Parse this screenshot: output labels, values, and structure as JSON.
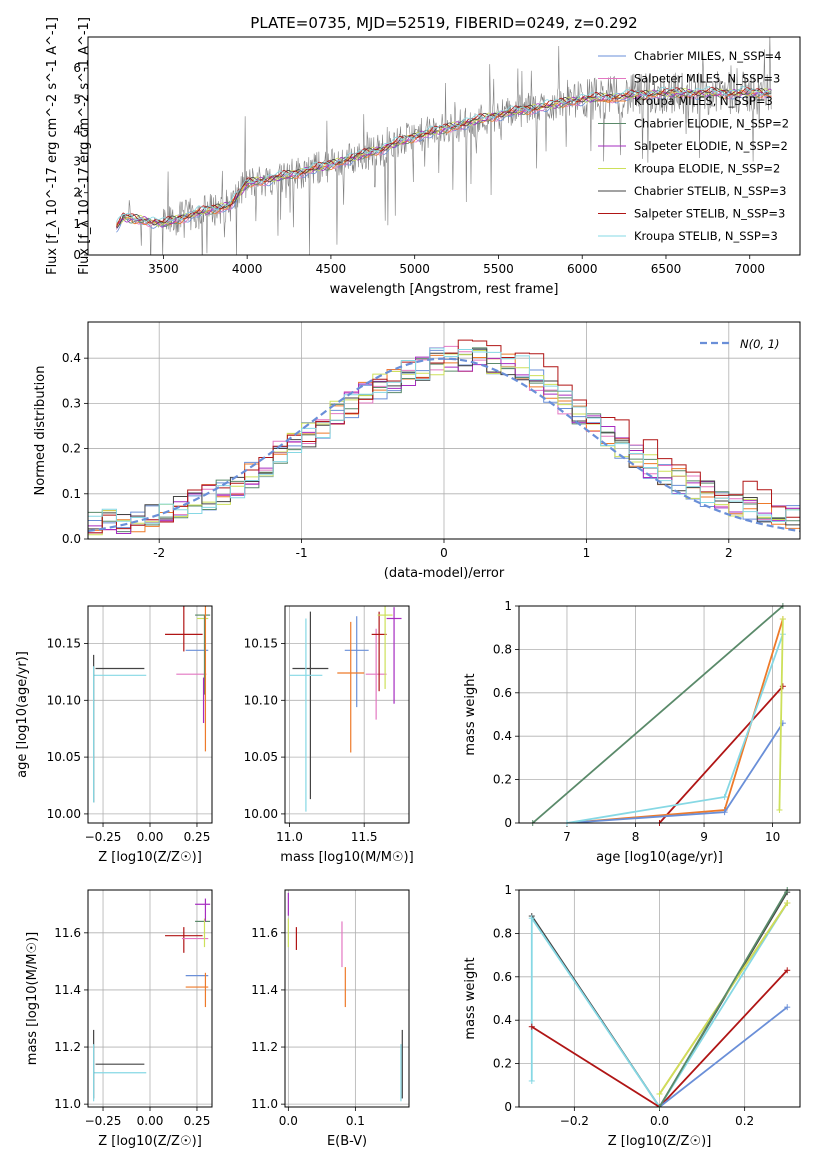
{
  "chart_data": [
    {
      "type": "line",
      "title": "PLATE=0735, MJD=52519, FIBERID=0249, z=0.292",
      "xlabel": "wavelength [Angstrom, rest frame]",
      "ylabel": "Flux [f_λ 10^-17 erg cm^-2 s^-1 A^-1]",
      "xlim": [
        3050,
        7300
      ],
      "ylim": [
        0,
        7
      ],
      "xticks": [
        3500,
        4000,
        4500,
        5000,
        5500,
        6000,
        6500,
        7000
      ],
      "yticks": [
        0,
        1,
        2,
        3,
        4,
        5,
        6
      ],
      "grid": false,
      "legend_position": "upper right",
      "data_range_x": [
        3220,
        7130
      ],
      "spectrum_anchors": {
        "x": [
          3220,
          3260,
          3400,
          3500,
          3700,
          3900,
          4000,
          4200,
          4500,
          4800,
          5000,
          5500,
          6000,
          6500,
          7000,
          7130
        ],
        "y": [
          0.9,
          1.2,
          1.1,
          1.0,
          1.35,
          1.6,
          2.3,
          2.5,
          2.9,
          3.4,
          3.8,
          4.5,
          5.0,
          5.2,
          5.2,
          5.2
        ]
      },
      "series": [
        {
          "name": "Chabrier MILES, N_SSP=4",
          "color": "#6a8fd8"
        },
        {
          "name": "Salpeter MILES, N_SSP=3",
          "color": "#e377c2"
        },
        {
          "name": "Kroupa MILES, N_SSP=3",
          "color": "#ee7a2a"
        },
        {
          "name": "Chabrier ELODIE, N_SSP=2",
          "color": "#5a8a6a"
        },
        {
          "name": "Salpeter ELODIE, N_SSP=2",
          "color": "#a62cc0"
        },
        {
          "name": "Kroupa ELODIE, N_SSP=2",
          "color": "#cde05a"
        },
        {
          "name": "Chabrier STELIB, N_SSP=3",
          "color": "#444444"
        },
        {
          "name": "Salpeter STELIB, N_SSP=3",
          "color": "#b01515"
        },
        {
          "name": "Kroupa STELIB, N_SSP=3",
          "color": "#86d8e4"
        }
      ],
      "data_color": "#808080"
    },
    {
      "type": "line",
      "xlabel": "(data-model)/error",
      "ylabel": "Normed distribution",
      "xlim": [
        -2.5,
        2.5
      ],
      "ylim": [
        0,
        0.48
      ],
      "xticks": [
        -2,
        -1,
        0,
        1,
        2
      ],
      "yticks": [
        0.0,
        0.1,
        0.2,
        0.3,
        0.4
      ],
      "grid": true,
      "legend": "N(0, 1)",
      "legend_position": "upper right",
      "bin_width": 0.1,
      "histogram_anchors": {
        "x": [
          -2.5,
          -2.0,
          -1.5,
          -1.0,
          -0.5,
          0.0,
          0.5,
          1.0,
          1.5,
          2.0,
          2.5
        ],
        "y": [
          0.03,
          0.05,
          0.11,
          0.22,
          0.33,
          0.4,
          0.39,
          0.26,
          0.15,
          0.08,
          0.04
        ]
      }
    },
    {
      "type": "scatter",
      "xlabel": "Z [log10(Z/Z☉)]",
      "ylabel": "age  [log10(age/yr)]",
      "xlim": [
        -0.33,
        0.33
      ],
      "ylim": [
        9.992,
        10.183
      ],
      "xticks": [
        -0.25,
        0.0,
        0.25
      ],
      "xticklabels": [
        "−0.25",
        "0.00",
        "0.25"
      ],
      "yticks": [
        10.0,
        10.05,
        10.1,
        10.15
      ],
      "yticklabels": [
        "10.00",
        "10.05",
        "10.10",
        "10.15"
      ],
      "grid": true,
      "errorbars": [
        {
          "x": -0.16,
          "y": 10.128,
          "xerr": [
            0.13,
            0.13
          ],
          "yerr": [
            0,
            0
          ],
          "series": 6
        },
        {
          "x": -0.16,
          "y": 10.122,
          "xerr": [
            0.14,
            0.14
          ],
          "yerr": [
            0,
            0
          ],
          "series": 8
        },
        {
          "x": -0.3,
          "y": 10.075,
          "xerr": [
            0,
            0
          ],
          "yerr": [
            0.065,
            0.065
          ],
          "series": 6
        },
        {
          "x": -0.3,
          "y": 10.07,
          "xerr": [
            0,
            0
          ],
          "yerr": [
            0.06,
            0.06
          ],
          "series": 8
        },
        {
          "x": 0.18,
          "y": 10.158,
          "xerr": [
            0.1,
            0.1
          ],
          "yerr": [
            0.015,
            0.058
          ],
          "series": 7
        },
        {
          "x": 0.22,
          "y": 10.123,
          "xerr": [
            0.08,
            0.08
          ],
          "yerr": [
            0,
            0
          ],
          "series": 1
        },
        {
          "x": 0.25,
          "y": 10.144,
          "xerr": [
            0.06,
            0.06
          ],
          "yerr": [
            0,
            0
          ],
          "series": 0
        },
        {
          "x": 0.28,
          "y": 10.175,
          "xerr": [
            0.04,
            0.04
          ],
          "yerr": [
            0,
            0
          ],
          "series": 3
        },
        {
          "x": 0.28,
          "y": 10.172,
          "xerr": [
            0.03,
            0.03
          ],
          "yerr": [
            0,
            0
          ],
          "series": 5
        },
        {
          "x": 0.29,
          "y": 10.14,
          "xerr": [
            0,
            0
          ],
          "yerr": [
            0.035,
            0.035
          ],
          "series": 3
        },
        {
          "x": 0.295,
          "y": 10.12,
          "xerr": [
            0,
            0
          ],
          "yerr": [
            0.065,
            0.065
          ],
          "series": 2
        },
        {
          "x": 0.285,
          "y": 10.1,
          "xerr": [
            0,
            0
          ],
          "yerr": [
            0.02,
            0.02
          ],
          "series": 4
        }
      ]
    },
    {
      "type": "scatter",
      "xlabel": "mass [log10(M/M☉)]",
      "xlim": [
        10.97,
        11.8
      ],
      "ylim": [
        9.992,
        10.183
      ],
      "xticks": [
        11.0,
        11.5
      ],
      "xticklabels": [
        "11.0",
        "11.5"
      ],
      "yticks": [
        10.0,
        10.05,
        10.1,
        10.15
      ],
      "yticklabels": [
        "10.00",
        "10.05",
        "10.10",
        "10.15"
      ],
      "grid": true,
      "errorbars": [
        {
          "x": 11.14,
          "y": 10.128,
          "xerr": [
            0.12,
            0.12
          ],
          "yerr": [
            0.115,
            0.05
          ],
          "series": 6
        },
        {
          "x": 11.11,
          "y": 10.122,
          "xerr": [
            0.11,
            0.11
          ],
          "yerr": [
            0.12,
            0.05
          ],
          "series": 8
        },
        {
          "x": 11.45,
          "y": 10.144,
          "xerr": [
            0.08,
            0.08
          ],
          "yerr": [
            0.05,
            0.03
          ],
          "series": 0
        },
        {
          "x": 11.41,
          "y": 10.124,
          "xerr": [
            0.09,
            0.09
          ],
          "yerr": [
            0.07,
            0.045
          ],
          "series": 2
        },
        {
          "x": 11.58,
          "y": 10.123,
          "xerr": [
            0.07,
            0.07
          ],
          "yerr": [
            0.04,
            0.04
          ],
          "series": 1
        },
        {
          "x": 11.6,
          "y": 10.158,
          "xerr": [
            0.05,
            0.05
          ],
          "yerr": [
            0.05,
            0.02
          ],
          "series": 7
        },
        {
          "x": 11.7,
          "y": 10.172,
          "xerr": [
            0.05,
            0.05
          ],
          "yerr": [
            0.075,
            0.01
          ],
          "series": 4
        },
        {
          "x": 11.64,
          "y": 10.175,
          "xerr": [
            0.05,
            0.05
          ],
          "yerr": [
            0.065,
            0.01
          ],
          "series": 5
        }
      ]
    },
    {
      "type": "line",
      "xlabel": "age  [log10(age/yr)]",
      "ylabel": "mass weight",
      "xlim": [
        6.3,
        10.4
      ],
      "ylim": [
        0,
        1.0
      ],
      "xticks": [
        7,
        8,
        9,
        10
      ],
      "yticks": [
        0.0,
        0.2,
        0.4,
        0.6,
        0.8,
        1.0
      ],
      "grid": true,
      "series": [
        {
          "series_index": 3,
          "x": [
            6.5,
            10.15
          ],
          "y": [
            0.0,
            1.0
          ]
        },
        {
          "series_index": 7,
          "x": [
            8.35,
            10.15
          ],
          "y": [
            0.0,
            0.63
          ]
        },
        {
          "series_index": 2,
          "x": [
            7.0,
            9.3,
            10.15
          ],
          "y": [
            0.0,
            0.06,
            0.94
          ]
        },
        {
          "series_index": 0,
          "x": [
            7.0,
            9.3,
            10.15
          ],
          "y": [
            0.0,
            0.05,
            0.46
          ]
        },
        {
          "series_index": 8,
          "x": [
            7.0,
            9.3,
            10.15
          ],
          "y": [
            0.0,
            0.12,
            0.87
          ]
        },
        {
          "series_index": 5,
          "x": [
            10.1,
            10.15
          ],
          "y": [
            0.06,
            0.94
          ]
        }
      ]
    },
    {
      "type": "scatter",
      "xlabel": "Z [log10(Z/Z☉)]",
      "ylabel": "mass [log10(M/M☉)]",
      "xlim": [
        -0.33,
        0.33
      ],
      "ylim": [
        10.99,
        11.75
      ],
      "xticks": [
        -0.25,
        0.0,
        0.25
      ],
      "xticklabels": [
        "−0.25",
        "0.00",
        "0.25"
      ],
      "yticks": [
        11.0,
        11.2,
        11.4,
        11.6
      ],
      "yticklabels": [
        "11.0",
        "11.2",
        "11.4",
        "11.6"
      ],
      "grid": true,
      "errorbars": [
        {
          "x": -0.16,
          "y": 11.14,
          "xerr": [
            0.13,
            0.13
          ],
          "yerr": [
            0,
            0
          ],
          "series": 6
        },
        {
          "x": -0.16,
          "y": 11.11,
          "xerr": [
            0.14,
            0.14
          ],
          "yerr": [
            0,
            0
          ],
          "series": 8
        },
        {
          "x": -0.3,
          "y": 11.14,
          "xerr": [
            0,
            0
          ],
          "yerr": [
            0.12,
            0.12
          ],
          "series": 6
        },
        {
          "x": -0.3,
          "y": 11.11,
          "xerr": [
            0,
            0
          ],
          "yerr": [
            0.1,
            0.1
          ],
          "series": 8
        },
        {
          "x": 0.18,
          "y": 11.59,
          "xerr": [
            0.1,
            0.1
          ],
          "yerr": [
            0.06,
            0.03
          ],
          "series": 7
        },
        {
          "x": 0.24,
          "y": 11.58,
          "xerr": [
            0.07,
            0.07
          ],
          "yerr": [
            0,
            0
          ],
          "series": 1
        },
        {
          "x": 0.25,
          "y": 11.45,
          "xerr": [
            0.06,
            0.06
          ],
          "yerr": [
            0,
            0
          ],
          "series": 0
        },
        {
          "x": 0.25,
          "y": 11.41,
          "xerr": [
            0.06,
            0.06
          ],
          "yerr": [
            0,
            0
          ],
          "series": 2
        },
        {
          "x": 0.28,
          "y": 11.7,
          "xerr": [
            0.04,
            0.04
          ],
          "yerr": [
            0,
            0
          ],
          "series": 4
        },
        {
          "x": 0.28,
          "y": 11.64,
          "xerr": [
            0.04,
            0.04
          ],
          "yerr": [
            0,
            0
          ],
          "series": 3
        },
        {
          "x": 0.295,
          "y": 11.41,
          "xerr": [
            0,
            0
          ],
          "yerr": [
            0.07,
            0.05
          ],
          "series": 2
        },
        {
          "x": 0.29,
          "y": 11.6,
          "xerr": [
            0,
            0
          ],
          "yerr": [
            0.05,
            0.05
          ],
          "series": 5
        },
        {
          "x": 0.295,
          "y": 11.68,
          "xerr": [
            0,
            0
          ],
          "yerr": [
            0.04,
            0.04
          ],
          "series": 4
        }
      ]
    },
    {
      "type": "scatter",
      "xlabel": "E(B-V)",
      "xlim": [
        -0.005,
        0.18
      ],
      "ylim": [
        10.99,
        11.75
      ],
      "xticks": [
        0.0,
        0.1
      ],
      "xticklabels": [
        "0.0",
        "0.1"
      ],
      "yticks": [
        11.0,
        11.2,
        11.4,
        11.6
      ],
      "yticklabels": [
        "11.0",
        "11.2",
        "11.4",
        "11.6"
      ],
      "grid": true,
      "errorbars": [
        {
          "x": 0.0,
          "y": 11.7,
          "xerr": [
            0,
            0
          ],
          "yerr": [
            0.04,
            0.04
          ],
          "series": 4
        },
        {
          "x": 0.0,
          "y": 11.6,
          "xerr": [
            0,
            0
          ],
          "yerr": [
            0.05,
            0.05
          ],
          "series": 5
        },
        {
          "x": 0.012,
          "y": 11.59,
          "xerr": [
            0,
            0
          ],
          "yerr": [
            0.05,
            0.03
          ],
          "series": 7
        },
        {
          "x": 0.08,
          "y": 11.58,
          "xerr": [
            0,
            0
          ],
          "yerr": [
            0.1,
            0.06
          ],
          "series": 1
        },
        {
          "x": 0.085,
          "y": 11.41,
          "xerr": [
            0,
            0
          ],
          "yerr": [
            0.07,
            0.07
          ],
          "series": 2
        },
        {
          "x": 0.17,
          "y": 11.14,
          "xerr": [
            0,
            0
          ],
          "yerr": [
            0.12,
            0.12
          ],
          "series": 6
        },
        {
          "x": 0.168,
          "y": 11.11,
          "xerr": [
            0,
            0
          ],
          "yerr": [
            0.1,
            0.1
          ],
          "series": 8
        }
      ]
    },
    {
      "type": "line",
      "xlabel": "Z [log10(Z/Z☉)]",
      "ylabel": "mass weight",
      "xlim": [
        -0.33,
        0.33
      ],
      "ylim": [
        0,
        1.0
      ],
      "xticks": [
        -0.2,
        0.0,
        0.2
      ],
      "xticklabels": [
        "−0.2",
        "0.0",
        "0.2"
      ],
      "yticks": [
        0.0,
        0.2,
        0.4,
        0.6,
        0.8,
        1.0
      ],
      "grid": true,
      "series": [
        {
          "series_index": 6,
          "x": [
            -0.3,
            0.0,
            0.3
          ],
          "y": [
            0.88,
            0.0,
            0.99
          ]
        },
        {
          "series_index": 8,
          "x": [
            -0.3,
            -0.3,
            0.0,
            0.3
          ],
          "y": [
            0.12,
            0.87,
            0.0,
            0.94
          ]
        },
        {
          "series_index": 7,
          "x": [
            -0.3,
            0.0,
            0.3
          ],
          "y": [
            0.37,
            0.0,
            0.63
          ]
        },
        {
          "series_index": 2,
          "x": [
            0.0,
            0.3
          ],
          "y": [
            0.06,
            0.94
          ]
        },
        {
          "series_index": 0,
          "x": [
            0.0,
            0.3
          ],
          "y": [
            0.0,
            0.46
          ]
        },
        {
          "series_index": 5,
          "x": [
            0.0,
            0.3
          ],
          "y": [
            0.06,
            0.94
          ]
        },
        {
          "series_index": 3,
          "x": [
            0.0,
            0.3
          ],
          "y": [
            0.0,
            1.0
          ]
        }
      ]
    }
  ]
}
